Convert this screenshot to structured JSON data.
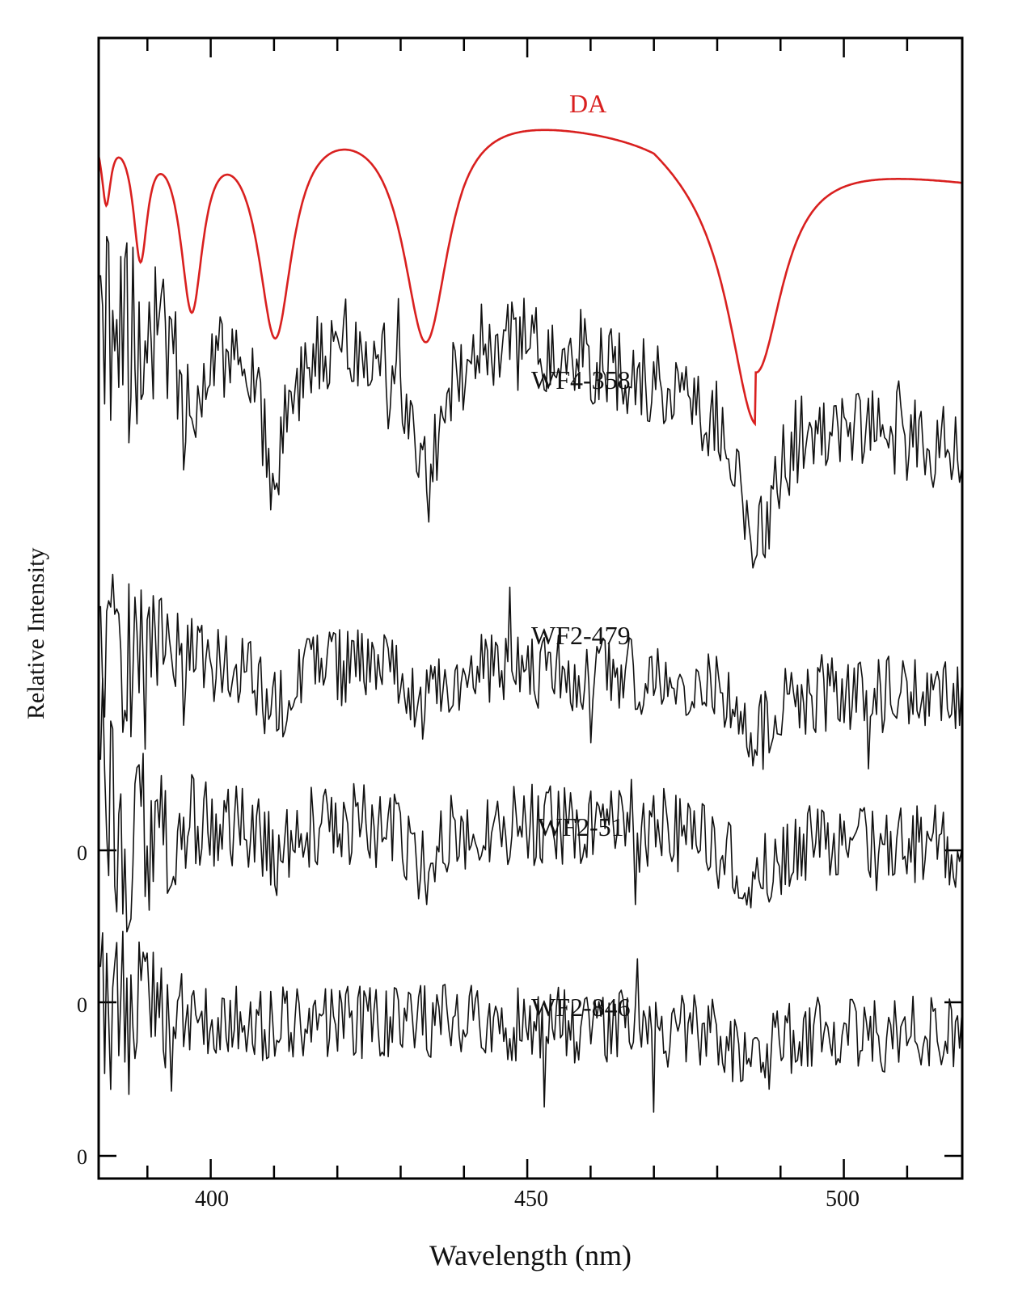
{
  "chart_data": {
    "type": "line",
    "title": "",
    "xlabel": "Wavelength (nm)",
    "ylabel": "Relative Intensity",
    "xlim": [
      382.3,
      518.7
    ],
    "x_major_ticks": [
      400,
      450,
      500
    ],
    "x_minor_tick_step": 10,
    "y_zero_labels": [
      "0",
      "0",
      "0"
    ],
    "grid": false,
    "legend": "none (inline series labels)",
    "series": [
      {
        "name": "DA",
        "color": "#d9201f",
        "kind": "model",
        "absorption_lines_nm": [
          383.5,
          388.9,
          397.0,
          410.2,
          434.0,
          486.1
        ],
        "line_depths_rel": [
          0.35,
          0.55,
          0.8,
          0.95,
          1.0,
          0.85
        ],
        "peaks_nm": [
          383.0,
          387.0,
          393.0,
          403.0,
          420.5,
          447.0,
          500.0
        ],
        "continuum_trend": "rises to ~420 nm, then declines toward red"
      },
      {
        "name": "WF4-358",
        "color": "#111111",
        "kind": "observed",
        "absorption_lines_nm": [
          397.0,
          410.2,
          434.0,
          486.1
        ],
        "noise": "moderate"
      },
      {
        "name": "WF2-479",
        "color": "#111111",
        "kind": "observed",
        "absorption_lines_nm": [
          410.2,
          434.0,
          486.1
        ],
        "noise": "high"
      },
      {
        "name": "WF2-51",
        "color": "#111111",
        "kind": "observed",
        "absorption_lines_nm": [
          410.2,
          434.0,
          486.1
        ],
        "noise": "high"
      },
      {
        "name": "WF2-846",
        "color": "#111111",
        "kind": "observed",
        "absorption_lines_nm": [
          486.1
        ],
        "noise": "high"
      }
    ]
  },
  "labels": {
    "xlabel": "Wavelength (nm)",
    "ylabel": "Relative Intensity",
    "xticks": [
      "400",
      "450",
      "500"
    ],
    "zeros": [
      "0",
      "0",
      "0"
    ],
    "series": [
      "DA",
      "WF4-358",
      "WF2-479",
      "WF2-51",
      "WF2-846"
    ]
  }
}
